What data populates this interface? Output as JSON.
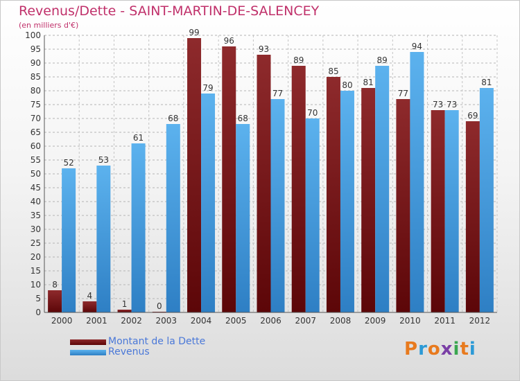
{
  "colors": {
    "dette": "#7a1416",
    "revenus": "#4aa3e6",
    "title": "#c0306a",
    "legend_text": "#4a78d8"
  },
  "brand": {
    "letters": [
      "P",
      "r",
      "o",
      "x",
      "i",
      "t",
      "i"
    ],
    "letter_colors": [
      "#e87a1e",
      "#2c9ad6",
      "#e87a1e",
      "#7a3fa6",
      "#3aa650",
      "#e87a1e",
      "#2c9ad6"
    ]
  },
  "chart_data": {
    "type": "bar",
    "title": "Revenus/Dette - SAINT-MARTIN-DE-SALENCEY",
    "subtitle": "(en milliers d'€)",
    "categories": [
      "2000",
      "2001",
      "2002",
      "2003",
      "2004",
      "2005",
      "2006",
      "2007",
      "2008",
      "2009",
      "2010",
      "2011",
      "2012"
    ],
    "series": [
      {
        "name": "Montant de la Dette",
        "values": [
          8,
          4,
          1,
          0,
          99,
          96,
          93,
          89,
          85,
          81,
          77,
          73,
          69
        ]
      },
      {
        "name": "Revenus",
        "values": [
          52,
          53,
          61,
          68,
          79,
          68,
          77,
          70,
          80,
          89,
          94,
          73,
          81
        ]
      }
    ],
    "ylim": [
      0,
      100
    ],
    "yticks": [
      0,
      5,
      10,
      15,
      20,
      25,
      30,
      35,
      40,
      45,
      50,
      55,
      60,
      65,
      70,
      75,
      80,
      85,
      90,
      95,
      100
    ],
    "grid": true,
    "legend_position": "bottom-left",
    "data_labels": true
  }
}
